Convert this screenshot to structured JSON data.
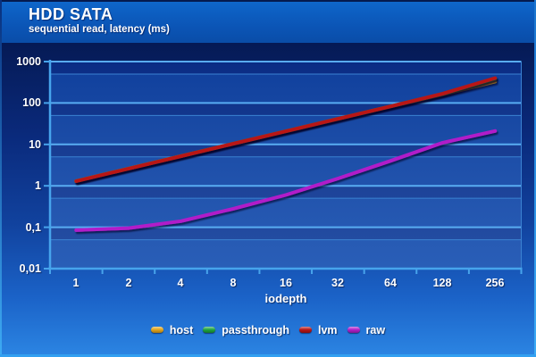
{
  "header": {
    "title": "HDD SATA",
    "subtitle": "sequential read, latency (ms)"
  },
  "chart_data": {
    "type": "line",
    "title": "HDD SATA",
    "subtitle": "sequential read, latency (ms)",
    "xlabel": "iodepth",
    "x_scale": "categorical-log2",
    "y_scale": "log10",
    "ylim": [
      0.01,
      1000
    ],
    "grid": "on",
    "legend_position": "bottom",
    "categories": [
      1,
      2,
      4,
      8,
      16,
      32,
      64,
      128,
      256
    ],
    "y_tick_labels": [
      "1000",
      "100",
      "10",
      "1",
      "0,1",
      "0,01"
    ],
    "y_tick_values": [
      1000,
      100,
      10,
      1,
      0.1,
      0.01
    ],
    "series": [
      {
        "name": "host",
        "color": "#e2a41c",
        "values": [
          1.3,
          2.6,
          5.2,
          10.3,
          20.5,
          41,
          82,
          160,
          330
        ]
      },
      {
        "name": "passthrough",
        "color": "#1ea43e",
        "values": [
          1.3,
          2.6,
          5.2,
          10.4,
          20.7,
          41.5,
          83,
          166,
          385
        ]
      },
      {
        "name": "lvm",
        "color": "#b81515",
        "values": [
          1.3,
          2.6,
          5.2,
          10.4,
          20.7,
          41.5,
          83,
          168,
          400
        ]
      },
      {
        "name": "raw",
        "color": "#b11fc9",
        "values": [
          0.085,
          0.095,
          0.14,
          0.28,
          0.6,
          1.5,
          4,
          11,
          21
        ]
      }
    ],
    "colors": {
      "panel_dark": "#0a2c84",
      "panel_light": "#0f3f9c",
      "grid_major": "#58acf2",
      "grid_minor": "#3b82d2",
      "axis": "#47a4ec",
      "text": "#ffffff"
    }
  }
}
